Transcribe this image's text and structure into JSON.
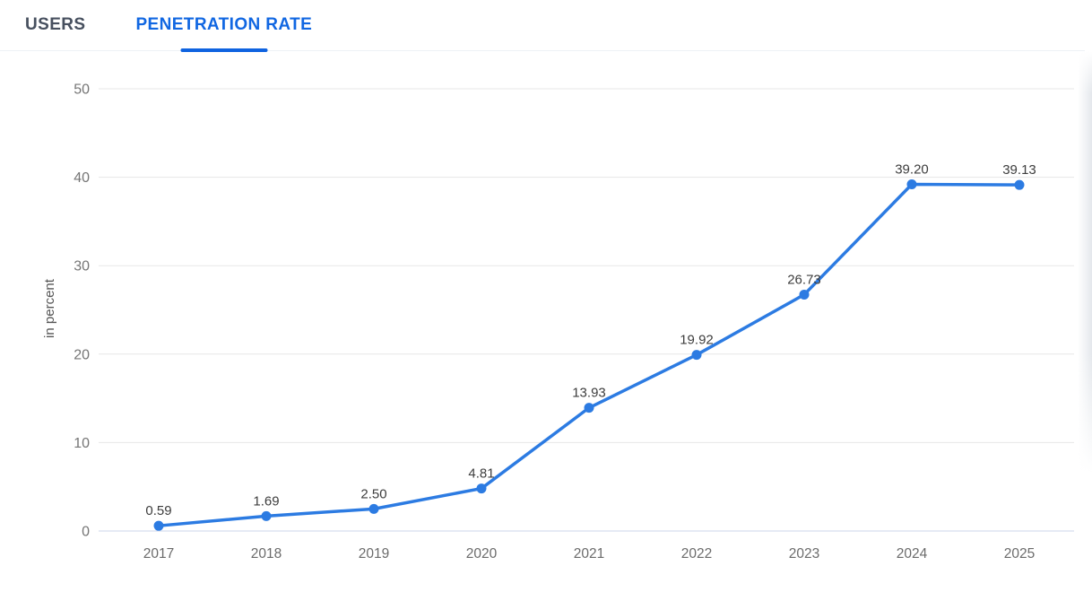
{
  "tabs": {
    "users_label": "USERS",
    "penetration_label": "PENETRATION RATE",
    "active_tab": "PENETRATION RATE"
  },
  "chart_data": {
    "type": "line",
    "categories": [
      "2017",
      "2018",
      "2019",
      "2020",
      "2021",
      "2022",
      "2023",
      "2024",
      "2025"
    ],
    "values": [
      0.59,
      1.69,
      2.5,
      4.81,
      13.93,
      19.92,
      26.73,
      39.2,
      39.13
    ],
    "point_labels": [
      "0.59",
      "1.69",
      "2.50",
      "4.81",
      "13.93",
      "19.92",
      "26.73",
      "39.20",
      "39.13"
    ],
    "title": "",
    "xlabel": "",
    "ylabel": "in percent",
    "ylim": [
      0,
      50
    ],
    "yticks": [
      0,
      10,
      20,
      30,
      40,
      50
    ],
    "grid": true,
    "legend_position": "none"
  },
  "colors": {
    "line": "#2c7be2",
    "point": "#2c7be2",
    "gridline": "#e7e7e7",
    "axis_baseline": "#ccd6eb",
    "y_tick_label": "#757575",
    "x_tick_label": "#6b6b6b",
    "data_label": "#3d3d3d",
    "y_axis_title": "#565656",
    "tab_active": "#1167e2",
    "tab_inactive": "#47505f"
  }
}
